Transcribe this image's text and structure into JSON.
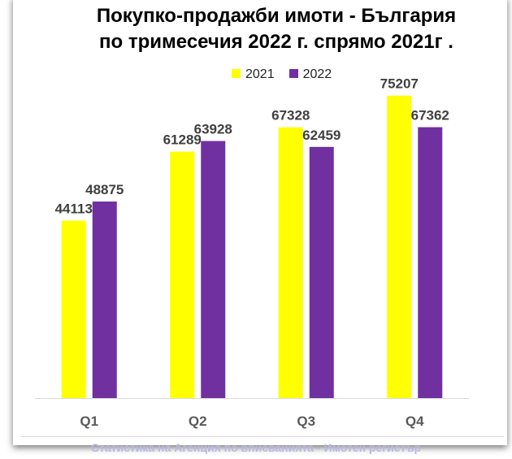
{
  "chart_data": {
    "type": "bar",
    "title": "Покупко-продажби имоти - България",
    "subtitle": "по тримесечия 2022 г. спрямо 2021г .",
    "categories": [
      "Q1",
      "Q2",
      "Q3",
      "Q4"
    ],
    "series": [
      {
        "name": "2021",
        "color": "#ffff00",
        "values": [
          44113,
          61289,
          67328,
          75207
        ]
      },
      {
        "name": "2022",
        "color": "#7030a0",
        "values": [
          48875,
          63928,
          62459,
          67362
        ]
      }
    ],
    "xlabel": "",
    "ylabel": "",
    "ylim": [
      0,
      80000
    ],
    "grid": false,
    "legend": "top"
  },
  "footer": "Статистика на Агенция по вписванията - Имотен регистър"
}
